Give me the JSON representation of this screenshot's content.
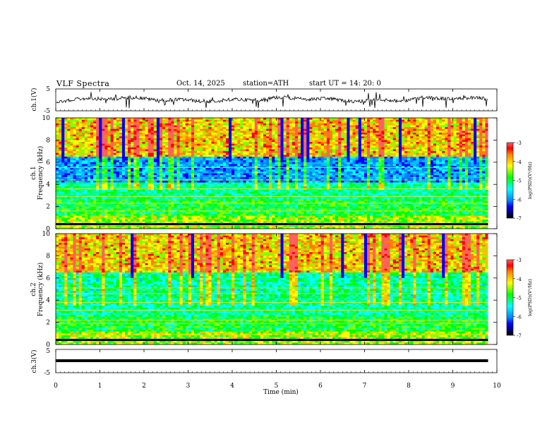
{
  "header": {
    "title": "VLF  Spectra",
    "date": "Oct. 14, 2025",
    "station": "station=ATH",
    "start": "start  UT  =   14: 20: 0"
  },
  "chart_data": [
    {
      "type": "line",
      "name": "ch1-voltage",
      "ylabel": "ch.1(V)",
      "ylim": [
        -5,
        5
      ],
      "yticks": [
        "5",
        "-5"
      ],
      "xlim": [
        0,
        10
      ]
    },
    {
      "type": "heatmap",
      "name": "ch1-spectrogram",
      "ylabel": "ch.1\nFrequency (kHz)",
      "ylabel_lines": [
        "ch.1",
        "Frequency  (kHz)"
      ],
      "ylim": [
        0,
        10
      ],
      "yticks": [
        "10",
        "8",
        "6",
        "4",
        "2",
        "0"
      ],
      "xlim": [
        0,
        10
      ],
      "colorbar": {
        "label": "log(PSD)(V²/Hz)",
        "range": [
          -7,
          -3
        ],
        "ticks": [
          "-3",
          "-4",
          "-5",
          "-6",
          "-7"
        ]
      }
    },
    {
      "type": "heatmap",
      "name": "ch2-spectrogram",
      "ylabel": "ch.2\nFrequency (kHz)",
      "ylabel_lines": [
        "ch.2",
        "Frequency  (kHz)"
      ],
      "ylim": [
        0,
        10
      ],
      "yticks": [
        "10",
        "8",
        "6",
        "4",
        "2",
        "0"
      ],
      "xlim": [
        0,
        10
      ],
      "colorbar": {
        "label": "log(PSD)(V²/Hz)",
        "range": [
          -7,
          -3
        ],
        "ticks": [
          "-3",
          "-4",
          "-5",
          "-6",
          "-7"
        ]
      }
    },
    {
      "type": "line",
      "name": "ch3-voltage",
      "ylabel": "ch.3(V)",
      "ylim": [
        -5,
        5
      ],
      "yticks": [
        "5",
        "-5"
      ],
      "xlim": [
        0,
        10
      ]
    }
  ],
  "xaxis": {
    "label": "Time  (min)",
    "ticks": [
      "0",
      "1",
      "2",
      "3",
      "4",
      "5",
      "6",
      "7",
      "8",
      "9",
      "10"
    ],
    "data_end": 9.8
  },
  "colors": {
    "scale": [
      "#000000",
      "#000080",
      "#0000ff",
      "#0080ff",
      "#00c0ff",
      "#00ffff",
      "#00ff80",
      "#00ff00",
      "#80ff00",
      "#ffff00",
      "#ffc000",
      "#ff8000",
      "#ff0000",
      "#ff6060",
      "#ffffff"
    ]
  }
}
